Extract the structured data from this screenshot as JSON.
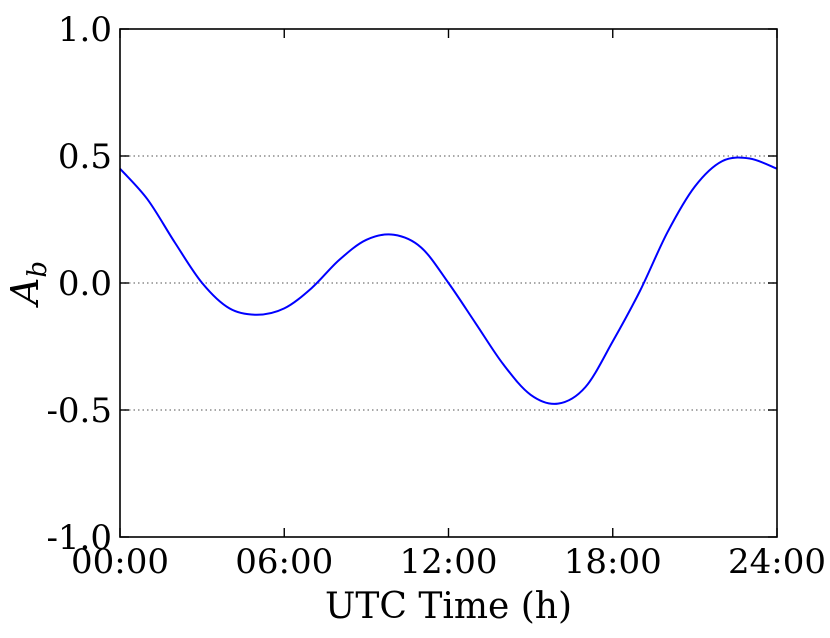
{
  "chart_data": {
    "type": "line",
    "title": "",
    "xlabel": "UTC Time (h)",
    "ylabel": {
      "main": "A",
      "subscript": "b"
    },
    "xlim": [
      0,
      24
    ],
    "ylim": [
      -1.0,
      1.0
    ],
    "x_ticks": [
      {
        "value": 0,
        "label": "00:00"
      },
      {
        "value": 6,
        "label": "06:00"
      },
      {
        "value": 12,
        "label": "12:00"
      },
      {
        "value": 18,
        "label": "18:00"
      },
      {
        "value": 24,
        "label": "24:00"
      }
    ],
    "y_ticks": [
      {
        "value": 1.0,
        "label": "1.0"
      },
      {
        "value": 0.5,
        "label": "0.5"
      },
      {
        "value": 0.0,
        "label": "0.0"
      },
      {
        "value": -0.5,
        "label": "-0.5"
      },
      {
        "value": -1.0,
        "label": "-1.0"
      }
    ],
    "grid": {
      "horizontal_lines_at": [
        0.5,
        0.0,
        -0.5
      ],
      "style": "dotted"
    },
    "series": [
      {
        "color": "#0000ff",
        "x": [
          0,
          1,
          2,
          3,
          4,
          5,
          6,
          7,
          8,
          9,
          10,
          11,
          12,
          13,
          14,
          15,
          16,
          17,
          18,
          19,
          20,
          21,
          22,
          23,
          24
        ],
        "y": [
          0.45,
          0.33,
          0.16,
          0.0,
          -0.1,
          -0.125,
          -0.1,
          -0.02,
          0.09,
          0.17,
          0.19,
          0.14,
          0.0,
          -0.16,
          -0.32,
          -0.44,
          -0.475,
          -0.41,
          -0.23,
          -0.03,
          0.2,
          0.38,
          0.48,
          0.49,
          0.45
        ]
      }
    ]
  }
}
